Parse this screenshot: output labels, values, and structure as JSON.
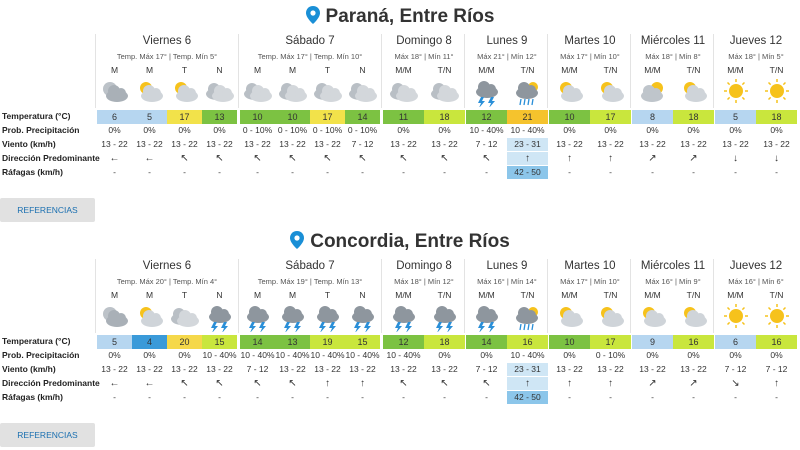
{
  "locations": [
    {
      "title": "Paraná, Entre Ríos",
      "row_labels": [
        "Temperatura (°C)",
        "Prob. Precipitación",
        "Viento (km/h)",
        "Dirección Predominante",
        "Ráfagas (km/h)"
      ],
      "button": "REFERENCIAS",
      "days": [
        {
          "name": "Viernes 6",
          "summary": "Temp. Máx 17° | Temp. Mín 5°",
          "periods": [
            {
              "label": "M",
              "temp": 6,
              "color": "#b6d6f0",
              "precip": "0%",
              "wind": "13 - 22",
              "dir": "←",
              "gust": "-"
            },
            {
              "label": "M",
              "temp": 5,
              "color": "#b6d6f0",
              "precip": "0%",
              "wind": "13 - 22",
              "dir": "←",
              "gust": "-"
            },
            {
              "label": "T",
              "temp": 17,
              "color": "#f2e24a",
              "precip": "0%",
              "wind": "13 - 22",
              "dir": "↖",
              "gust": "-"
            },
            {
              "label": "N",
              "temp": 13,
              "color": "#7cc242",
              "precip": "0%",
              "wind": "13 - 22",
              "dir": "↖",
              "gust": "-"
            }
          ]
        },
        {
          "name": "Sábado 7",
          "summary": "Temp. Máx 17° | Temp. Mín 10°",
          "periods": [
            {
              "label": "M",
              "temp": 10,
              "color": "#7cc242",
              "precip": "0 - 10%",
              "wind": "13 - 22",
              "dir": "↖",
              "gust": "-"
            },
            {
              "label": "M",
              "temp": 10,
              "color": "#7cc242",
              "precip": "0 - 10%",
              "wind": "13 - 22",
              "dir": "↖",
              "gust": "-"
            },
            {
              "label": "T",
              "temp": 17,
              "color": "#f2e24a",
              "precip": "0 - 10%",
              "wind": "13 - 22",
              "dir": "↖",
              "gust": "-"
            },
            {
              "label": "N",
              "temp": 14,
              "color": "#7cc242",
              "precip": "0 - 10%",
              "wind": "7 - 12",
              "dir": "↖",
              "gust": "-"
            }
          ]
        },
        {
          "name": "Domingo 8",
          "summary": "Máx 18° | Mín 11°",
          "periods": [
            {
              "label": "M/M",
              "temp": 11,
              "color": "#7cc242",
              "precip": "0%",
              "wind": "13 - 22",
              "dir": "↖",
              "gust": "-"
            },
            {
              "label": "T/N",
              "temp": 18,
              "color": "#c9e63d",
              "precip": "0%",
              "wind": "13 - 22",
              "dir": "↖",
              "gust": "-"
            }
          ]
        },
        {
          "name": "Lunes 9",
          "summary": "Máx 21° | Mín 12°",
          "periods": [
            {
              "label": "M/M",
              "temp": 12,
              "color": "#7cc242",
              "precip": "10 - 40%",
              "wind": "7 - 12",
              "dir": "↖",
              "gust": "-"
            },
            {
              "label": "T/N",
              "temp": 21,
              "color": "#f5c32d",
              "precip": "10 - 40%",
              "wind": "23 - 31",
              "dir": "↑",
              "gust": "42 - 50"
            }
          ]
        },
        {
          "name": "Martes 10",
          "summary": "Máx 17° | Mín 10°",
          "periods": [
            {
              "label": "M/M",
              "temp": 10,
              "color": "#7cc242",
              "precip": "0%",
              "wind": "13 - 22",
              "dir": "↑",
              "gust": "-"
            },
            {
              "label": "T/N",
              "temp": 17,
              "color": "#c9e63d",
              "precip": "0%",
              "wind": "13 - 22",
              "dir": "↑",
              "gust": "-"
            }
          ]
        },
        {
          "name": "Miércoles 11",
          "summary": "Máx 18° | Mín 8°",
          "periods": [
            {
              "label": "M/M",
              "temp": 8,
              "color": "#b6d6f0",
              "precip": "0%",
              "wind": "13 - 22",
              "dir": "↗",
              "gust": "-"
            },
            {
              "label": "T/N",
              "temp": 18,
              "color": "#c9e63d",
              "precip": "0%",
              "wind": "13 - 22",
              "dir": "↗",
              "gust": "-"
            }
          ]
        },
        {
          "name": "Jueves 12",
          "summary": "Máx 18° | Mín 5°",
          "periods": [
            {
              "label": "M/M",
              "temp": 5,
              "color": "#b6d6f0",
              "precip": "0%",
              "wind": "13 - 22",
              "dir": "↓",
              "gust": "-"
            },
            {
              "label": "T/N",
              "temp": 18,
              "color": "#c9e63d",
              "precip": "0%",
              "wind": "13 - 22",
              "dir": "↓",
              "gust": "-"
            }
          ]
        }
      ]
    },
    {
      "title": "Concordia, Entre Ríos",
      "row_labels": [
        "Temperatura (°C)",
        "Prob. Precipitación",
        "Viento (km/h)",
        "Dirección Predominante",
        "Ráfagas (km/h)"
      ],
      "button": "REFERENCIAS",
      "days": [
        {
          "name": "Viernes 6",
          "summary": "Temp. Máx 20° | Temp. Mín 4°",
          "periods": [
            {
              "label": "M",
              "temp": 5,
              "color": "#b6d6f0",
              "precip": "0%",
              "wind": "13 - 22",
              "dir": "←",
              "gust": "-"
            },
            {
              "label": "M",
              "temp": 4,
              "color": "#3a9ad9",
              "precip": "0%",
              "wind": "13 - 22",
              "dir": "←",
              "gust": "-"
            },
            {
              "label": "T",
              "temp": 20,
              "color": "#f5d84a",
              "precip": "0%",
              "wind": "13 - 22",
              "dir": "↖",
              "gust": "-"
            },
            {
              "label": "N",
              "temp": 15,
              "color": "#c9e63d",
              "precip": "10 - 40%",
              "wind": "13 - 22",
              "dir": "↖",
              "gust": "-"
            }
          ]
        },
        {
          "name": "Sábado 7",
          "summary": "Temp. Máx 19° | Temp. Mín 13°",
          "periods": [
            {
              "label": "M",
              "temp": 14,
              "color": "#7cc242",
              "precip": "10 - 40%",
              "wind": "7 - 12",
              "dir": "↖",
              "gust": "-"
            },
            {
              "label": "M",
              "temp": 13,
              "color": "#7cc242",
              "precip": "10 - 40%",
              "wind": "13 - 22",
              "dir": "↖",
              "gust": "-"
            },
            {
              "label": "T",
              "temp": 19,
              "color": "#c9e63d",
              "precip": "10 - 40%",
              "wind": "13 - 22",
              "dir": "↑",
              "gust": "-"
            },
            {
              "label": "N",
              "temp": 15,
              "color": "#c9e63d",
              "precip": "10 - 40%",
              "wind": "13 - 22",
              "dir": "↑",
              "gust": "-"
            }
          ]
        },
        {
          "name": "Domingo 8",
          "summary": "Máx 18° | Mín 12°",
          "periods": [
            {
              "label": "M/M",
              "temp": 12,
              "color": "#7cc242",
              "precip": "10 - 40%",
              "wind": "13 - 22",
              "dir": "↖",
              "gust": "-"
            },
            {
              "label": "T/N",
              "temp": 18,
              "color": "#c9e63d",
              "precip": "0%",
              "wind": "13 - 22",
              "dir": "↖",
              "gust": "-"
            }
          ]
        },
        {
          "name": "Lunes 9",
          "summary": "Máx 16° | Mín 14°",
          "periods": [
            {
              "label": "M/M",
              "temp": 14,
              "color": "#7cc242",
              "precip": "0%",
              "wind": "7 - 12",
              "dir": "↖",
              "gust": "-"
            },
            {
              "label": "T/N",
              "temp": 16,
              "color": "#c9e63d",
              "precip": "10 - 40%",
              "wind": "23 - 31",
              "dir": "↑",
              "gust": "42 - 50"
            }
          ]
        },
        {
          "name": "Martes 10",
          "summary": "Máx 17° | Mín 10°",
          "periods": [
            {
              "label": "M/M",
              "temp": 10,
              "color": "#7cc242",
              "precip": "0%",
              "wind": "13 - 22",
              "dir": "↑",
              "gust": "-"
            },
            {
              "label": "T/N",
              "temp": 17,
              "color": "#c9e63d",
              "precip": "0 - 10%",
              "wind": "13 - 22",
              "dir": "↑",
              "gust": "-"
            }
          ]
        },
        {
          "name": "Miércoles 11",
          "summary": "Máx 16° | Mín 9°",
          "periods": [
            {
              "label": "M/M",
              "temp": 9,
              "color": "#b6d6f0",
              "precip": "0%",
              "wind": "13 - 22",
              "dir": "↗",
              "gust": "-"
            },
            {
              "label": "T/N",
              "temp": 16,
              "color": "#c9e63d",
              "precip": "0%",
              "wind": "13 - 22",
              "dir": "↗",
              "gust": "-"
            }
          ]
        },
        {
          "name": "Jueves 12",
          "summary": "Máx 16° | Mín 6°",
          "periods": [
            {
              "label": "M/M",
              "temp": 6,
              "color": "#b6d6f0",
              "precip": "0%",
              "wind": "7 - 12",
              "dir": "↘",
              "gust": "-"
            },
            {
              "label": "T/N",
              "temp": 16,
              "color": "#c9e63d",
              "precip": "0%",
              "wind": "7 - 12",
              "dir": "↑",
              "gust": "-"
            }
          ]
        }
      ]
    }
  ]
}
